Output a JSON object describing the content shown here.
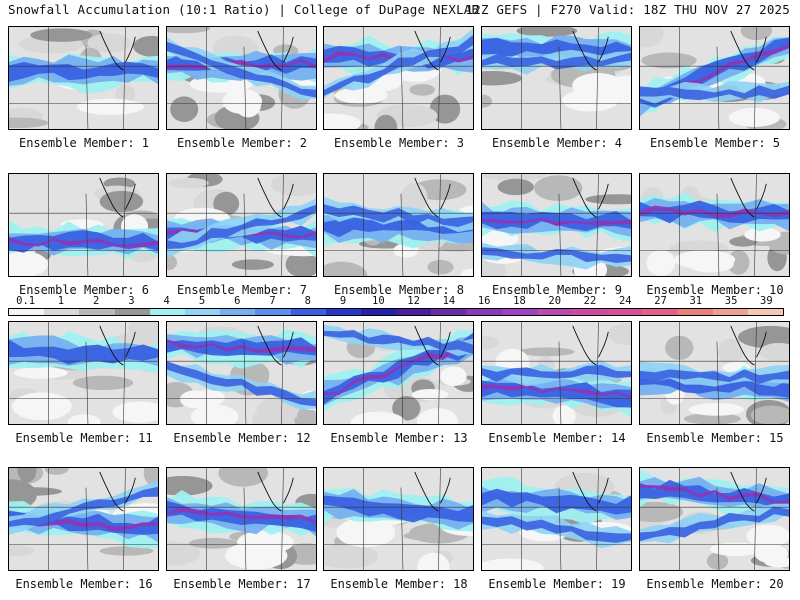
{
  "header": {
    "left": "Snowfall Accumulation (10:1 Ratio) | College of DuPage NEXLAB",
    "right": "12Z GEFS | F270 Valid: 18Z THU NOV 27 2025"
  },
  "colorbar": {
    "labels": [
      "0.1",
      "1",
      "2",
      "3",
      "4",
      "5",
      "6",
      "7",
      "8",
      "9",
      "10",
      "12",
      "14",
      "16",
      "18",
      "20",
      "22",
      "24",
      "27",
      "31",
      "35",
      "39"
    ],
    "colors": [
      "#f4f4f4",
      "#d8d8d8",
      "#b8b8b8",
      "#969696",
      "#9ff0f0",
      "#8fd3f5",
      "#77b0f0",
      "#5a8ff0",
      "#3a62e0",
      "#2638c8",
      "#2520a8",
      "#4a2098",
      "#6b2ca8",
      "#8a38b8",
      "#a040c0",
      "#b84ab0",
      "#cc4aa4",
      "#d8509a",
      "#e0608a",
      "#e8807a",
      "#f0a090",
      "#f6c8b4"
    ]
  },
  "panels": [
    {
      "label": "Ensemble Member: 1"
    },
    {
      "label": "Ensemble Member: 2"
    },
    {
      "label": "Ensemble Member: 3"
    },
    {
      "label": "Ensemble Member: 4"
    },
    {
      "label": "Ensemble Member: 5"
    },
    {
      "label": "Ensemble Member: 6"
    },
    {
      "label": "Ensemble Member: 7"
    },
    {
      "label": "Ensemble Member: 8"
    },
    {
      "label": "Ensemble Member: 9"
    },
    {
      "label": "Ensemble Member: 10"
    },
    {
      "label": "Ensemble Member: 11"
    },
    {
      "label": "Ensemble Member: 12"
    },
    {
      "label": "Ensemble Member: 13"
    },
    {
      "label": "Ensemble Member: 14"
    },
    {
      "label": "Ensemble Member: 15"
    },
    {
      "label": "Ensemble Member: 16"
    },
    {
      "label": "Ensemble Member: 17"
    },
    {
      "label": "Ensemble Member: 18"
    },
    {
      "label": "Ensemble Member: 19"
    },
    {
      "label": "Ensemble Member: 20"
    }
  ]
}
